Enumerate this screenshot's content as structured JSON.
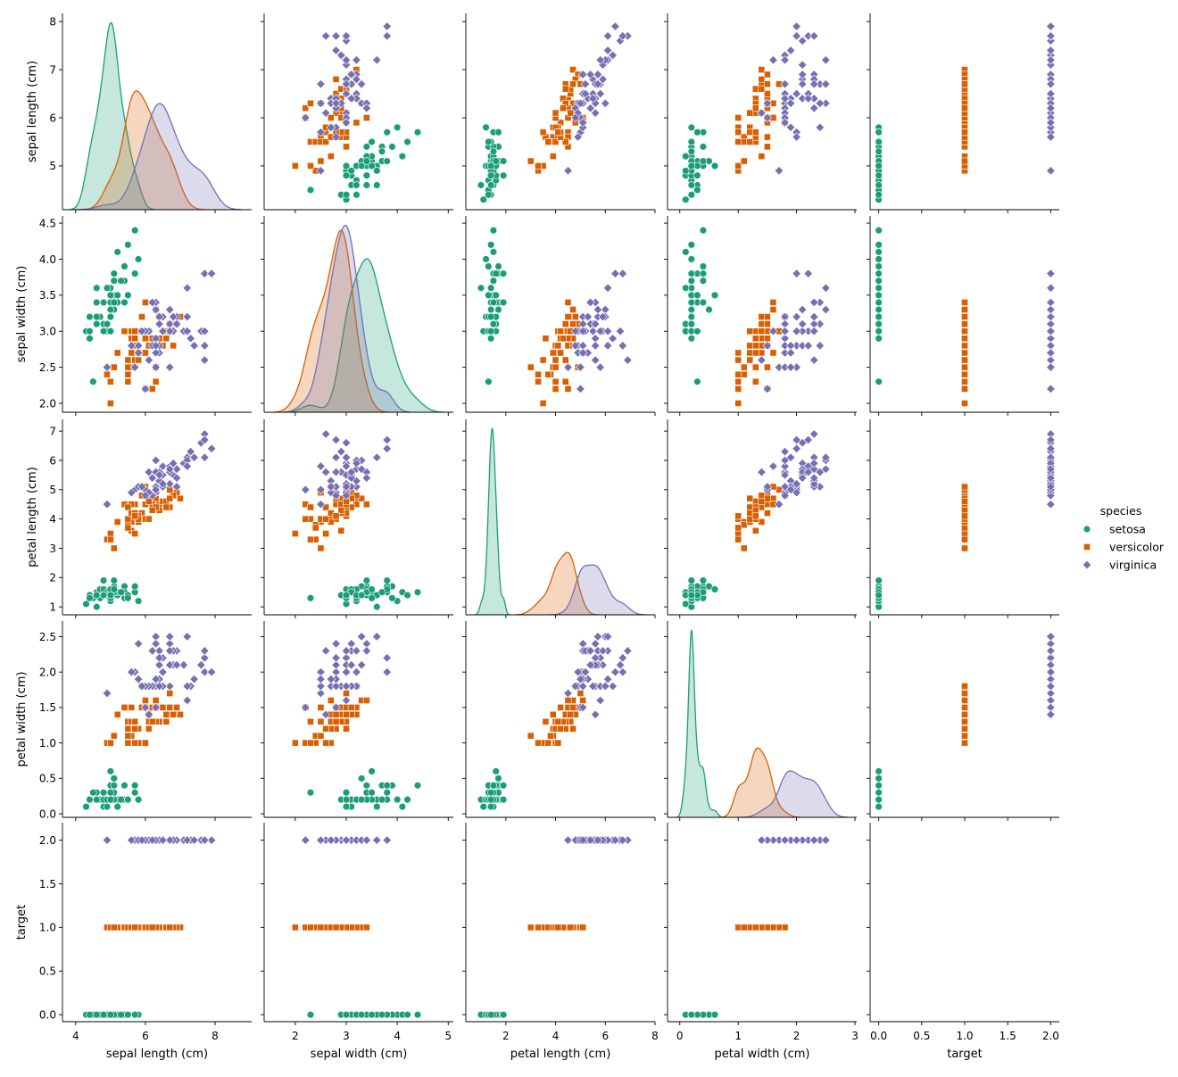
{
  "chart_data": {
    "type": "scatter",
    "subtype": "pairplot",
    "hue": "species",
    "diagonal": "kde",
    "grid": false,
    "legend": {
      "title": "species",
      "placement": "right"
    },
    "variables": [
      {
        "label": "sepal length (cm)",
        "xlim": [
          3.62,
          9.05
        ],
        "ylim": [
          4.09,
          8.17
        ],
        "xticks": [
          4,
          6,
          8
        ],
        "xtick_labels": [
          "4",
          "6",
          "8"
        ],
        "yticks": [
          5,
          6,
          7,
          8
        ],
        "ytick_labels": [
          "5",
          "6",
          "7",
          "8"
        ]
      },
      {
        "label": "sepal width (cm)",
        "xlim": [
          1.39,
          5.1
        ],
        "ylim": [
          1.876,
          4.6
        ],
        "xticks": [
          2,
          3,
          4,
          5
        ],
        "xtick_labels": [
          "2",
          "3",
          "4",
          "5"
        ],
        "yticks": [
          2.0,
          2.5,
          3.0,
          3.5,
          4.0,
          4.5
        ],
        "ytick_labels": [
          "2.0",
          "2.5",
          "3.0",
          "3.5",
          "4.0",
          "4.5"
        ]
      },
      {
        "label": "petal length (cm)",
        "xlim": [
          0.39,
          8.0
        ],
        "ylim": [
          0.73,
          7.4
        ],
        "xticks": [
          2,
          4,
          6,
          8
        ],
        "xtick_labels": [
          "2",
          "4",
          "6",
          "8"
        ],
        "yticks": [
          1,
          2,
          3,
          4,
          5,
          6,
          7
        ],
        "ytick_labels": [
          "1",
          "2",
          "3",
          "4",
          "5",
          "6",
          "7"
        ]
      },
      {
        "label": "petal width (cm)",
        "xlim": [
          -0.21,
          3.03
        ],
        "ylim": [
          -0.05,
          2.72
        ],
        "xticks": [
          0,
          1,
          2,
          3
        ],
        "xtick_labels": [
          "0",
          "1",
          "2",
          "3"
        ],
        "yticks": [
          0.0,
          0.5,
          1.0,
          1.5,
          2.0,
          2.5
        ],
        "ytick_labels": [
          "0.0",
          "0.5",
          "1.0",
          "1.5",
          "2.0",
          "2.5"
        ]
      },
      {
        "label": "target",
        "xlim": [
          -0.1,
          2.1
        ],
        "ylim": [
          -0.08,
          2.2
        ],
        "xticks": [
          0.0,
          0.5,
          1.0,
          1.5,
          2.0
        ],
        "xtick_labels": [
          "0.0",
          "0.5",
          "1.0",
          "1.5",
          "2.0"
        ],
        "yticks": [
          0.0,
          0.5,
          1.0,
          1.5,
          2.0
        ],
        "ytick_labels": [
          "0.0",
          "0.5",
          "1.0",
          "1.5",
          "2.0"
        ]
      }
    ],
    "series": [
      {
        "name": "setosa",
        "color": "#1b9e77",
        "marker": "circle",
        "target": 0,
        "rows": [
          [
            5.1,
            3.5,
            1.4,
            0.2
          ],
          [
            4.9,
            3.0,
            1.4,
            0.2
          ],
          [
            4.7,
            3.2,
            1.3,
            0.2
          ],
          [
            4.6,
            3.1,
            1.5,
            0.2
          ],
          [
            5.0,
            3.6,
            1.4,
            0.2
          ],
          [
            5.4,
            3.9,
            1.7,
            0.4
          ],
          [
            4.6,
            3.4,
            1.4,
            0.3
          ],
          [
            5.0,
            3.4,
            1.5,
            0.2
          ],
          [
            4.4,
            2.9,
            1.4,
            0.2
          ],
          [
            4.9,
            3.1,
            1.5,
            0.1
          ],
          [
            5.4,
            3.7,
            1.5,
            0.2
          ],
          [
            4.8,
            3.4,
            1.6,
            0.2
          ],
          [
            4.8,
            3.0,
            1.4,
            0.1
          ],
          [
            4.3,
            3.0,
            1.1,
            0.1
          ],
          [
            5.8,
            4.0,
            1.2,
            0.2
          ],
          [
            5.7,
            4.4,
            1.5,
            0.4
          ],
          [
            5.4,
            3.9,
            1.3,
            0.4
          ],
          [
            5.1,
            3.5,
            1.4,
            0.3
          ],
          [
            5.7,
            3.8,
            1.7,
            0.3
          ],
          [
            5.1,
            3.8,
            1.5,
            0.3
          ],
          [
            5.4,
            3.4,
            1.7,
            0.2
          ],
          [
            5.1,
            3.7,
            1.5,
            0.4
          ],
          [
            4.6,
            3.6,
            1.0,
            0.2
          ],
          [
            5.1,
            3.3,
            1.7,
            0.5
          ],
          [
            4.8,
            3.4,
            1.9,
            0.2
          ],
          [
            5.0,
            3.0,
            1.6,
            0.2
          ],
          [
            5.0,
            3.4,
            1.6,
            0.4
          ],
          [
            5.2,
            3.5,
            1.5,
            0.2
          ],
          [
            5.2,
            3.4,
            1.4,
            0.2
          ],
          [
            4.7,
            3.2,
            1.6,
            0.2
          ],
          [
            4.8,
            3.1,
            1.6,
            0.2
          ],
          [
            5.4,
            3.4,
            1.5,
            0.4
          ],
          [
            5.2,
            4.1,
            1.5,
            0.1
          ],
          [
            5.5,
            4.2,
            1.4,
            0.2
          ],
          [
            4.9,
            3.1,
            1.5,
            0.2
          ],
          [
            5.0,
            3.2,
            1.2,
            0.2
          ],
          [
            5.5,
            3.5,
            1.3,
            0.2
          ],
          [
            4.9,
            3.6,
            1.4,
            0.1
          ],
          [
            4.4,
            3.0,
            1.3,
            0.2
          ],
          [
            5.1,
            3.4,
            1.5,
            0.2
          ],
          [
            5.0,
            3.5,
            1.3,
            0.3
          ],
          [
            4.5,
            2.3,
            1.3,
            0.3
          ],
          [
            4.4,
            3.2,
            1.3,
            0.2
          ],
          [
            5.0,
            3.5,
            1.6,
            0.6
          ],
          [
            5.1,
            3.8,
            1.9,
            0.4
          ],
          [
            4.8,
            3.0,
            1.4,
            0.3
          ],
          [
            5.1,
            3.8,
            1.6,
            0.2
          ],
          [
            4.6,
            3.2,
            1.4,
            0.2
          ],
          [
            5.3,
            3.7,
            1.5,
            0.2
          ],
          [
            5.0,
            3.3,
            1.4,
            0.2
          ]
        ]
      },
      {
        "name": "versicolor",
        "color": "#d95f02",
        "marker": "square",
        "target": 1,
        "rows": [
          [
            7.0,
            3.2,
            4.7,
            1.4
          ],
          [
            6.4,
            3.2,
            4.5,
            1.5
          ],
          [
            6.9,
            3.1,
            4.9,
            1.5
          ],
          [
            5.5,
            2.3,
            4.0,
            1.3
          ],
          [
            6.5,
            2.8,
            4.6,
            1.5
          ],
          [
            5.7,
            2.8,
            4.5,
            1.3
          ],
          [
            6.3,
            3.3,
            4.7,
            1.6
          ],
          [
            4.9,
            2.4,
            3.3,
            1.0
          ],
          [
            6.6,
            2.9,
            4.6,
            1.3
          ],
          [
            5.2,
            2.7,
            3.9,
            1.4
          ],
          [
            5.0,
            2.0,
            3.5,
            1.0
          ],
          [
            5.9,
            3.0,
            4.2,
            1.5
          ],
          [
            6.0,
            2.2,
            4.0,
            1.0
          ],
          [
            6.1,
            2.9,
            4.7,
            1.4
          ],
          [
            5.6,
            2.9,
            3.6,
            1.3
          ],
          [
            6.7,
            3.1,
            4.4,
            1.4
          ],
          [
            5.6,
            3.0,
            4.5,
            1.5
          ],
          [
            5.8,
            2.7,
            4.1,
            1.0
          ],
          [
            6.2,
            2.2,
            4.5,
            1.5
          ],
          [
            5.6,
            2.5,
            3.9,
            1.1
          ],
          [
            5.9,
            3.2,
            4.8,
            1.8
          ],
          [
            6.1,
            2.8,
            4.0,
            1.3
          ],
          [
            6.3,
            2.5,
            4.9,
            1.5
          ],
          [
            6.1,
            2.8,
            4.7,
            1.2
          ],
          [
            6.4,
            2.9,
            4.3,
            1.3
          ],
          [
            6.6,
            3.0,
            4.4,
            1.4
          ],
          [
            6.8,
            2.8,
            4.8,
            1.4
          ],
          [
            6.7,
            3.0,
            5.0,
            1.7
          ],
          [
            6.0,
            2.9,
            4.5,
            1.5
          ],
          [
            5.7,
            2.6,
            3.5,
            1.0
          ],
          [
            5.5,
            2.4,
            3.8,
            1.1
          ],
          [
            5.5,
            2.4,
            3.7,
            1.0
          ],
          [
            5.8,
            2.7,
            3.9,
            1.2
          ],
          [
            6.0,
            2.7,
            5.1,
            1.6
          ],
          [
            5.4,
            3.0,
            4.5,
            1.5
          ],
          [
            6.0,
            3.4,
            4.5,
            1.6
          ],
          [
            6.7,
            3.1,
            4.7,
            1.5
          ],
          [
            6.3,
            2.3,
            4.4,
            1.3
          ],
          [
            5.6,
            3.0,
            4.1,
            1.3
          ],
          [
            5.5,
            2.5,
            4.0,
            1.3
          ],
          [
            5.5,
            2.6,
            4.4,
            1.2
          ],
          [
            6.1,
            3.0,
            4.6,
            1.4
          ],
          [
            5.8,
            2.6,
            4.0,
            1.2
          ],
          [
            5.0,
            2.3,
            3.3,
            1.0
          ],
          [
            5.6,
            2.7,
            4.2,
            1.3
          ],
          [
            5.7,
            3.0,
            4.2,
            1.2
          ],
          [
            5.7,
            2.9,
            4.2,
            1.3
          ],
          [
            6.2,
            2.9,
            4.3,
            1.3
          ],
          [
            5.1,
            2.5,
            3.0,
            1.1
          ],
          [
            5.7,
            2.8,
            4.1,
            1.3
          ]
        ]
      },
      {
        "name": "virginica",
        "color": "#7570b3",
        "marker": "diamond",
        "target": 2,
        "rows": [
          [
            6.3,
            3.3,
            6.0,
            2.5
          ],
          [
            5.8,
            2.7,
            5.1,
            1.9
          ],
          [
            7.1,
            3.0,
            5.9,
            2.1
          ],
          [
            6.3,
            2.9,
            5.6,
            1.8
          ],
          [
            6.5,
            3.0,
            5.8,
            2.2
          ],
          [
            7.6,
            3.0,
            6.6,
            2.1
          ],
          [
            4.9,
            2.5,
            4.5,
            1.7
          ],
          [
            7.3,
            2.9,
            6.3,
            1.8
          ],
          [
            6.7,
            2.5,
            5.8,
            1.8
          ],
          [
            7.2,
            3.6,
            6.1,
            2.5
          ],
          [
            6.5,
            3.2,
            5.1,
            2.0
          ],
          [
            6.4,
            2.7,
            5.3,
            1.9
          ],
          [
            6.8,
            3.0,
            5.5,
            2.1
          ],
          [
            5.7,
            2.5,
            5.0,
            2.0
          ],
          [
            5.8,
            2.8,
            5.1,
            2.4
          ],
          [
            6.4,
            3.2,
            5.3,
            2.3
          ],
          [
            6.5,
            3.0,
            5.5,
            1.8
          ],
          [
            7.7,
            3.8,
            6.7,
            2.2
          ],
          [
            7.7,
            2.6,
            6.9,
            2.3
          ],
          [
            6.0,
            2.2,
            5.0,
            1.5
          ],
          [
            6.9,
            3.2,
            5.7,
            2.3
          ],
          [
            5.6,
            2.8,
            4.9,
            2.0
          ],
          [
            7.7,
            2.8,
            6.7,
            2.0
          ],
          [
            6.3,
            2.7,
            4.9,
            1.8
          ],
          [
            6.7,
            3.3,
            5.7,
            2.1
          ],
          [
            7.2,
            3.2,
            6.0,
            1.8
          ],
          [
            6.2,
            2.8,
            4.8,
            1.8
          ],
          [
            6.1,
            3.0,
            4.9,
            1.8
          ],
          [
            6.4,
            2.8,
            5.6,
            2.1
          ],
          [
            7.2,
            3.0,
            5.8,
            1.6
          ],
          [
            7.4,
            2.8,
            6.1,
            1.9
          ],
          [
            7.9,
            3.8,
            6.4,
            2.0
          ],
          [
            6.4,
            2.8,
            5.6,
            2.2
          ],
          [
            6.3,
            2.8,
            5.1,
            1.5
          ],
          [
            6.1,
            2.6,
            5.6,
            1.4
          ],
          [
            7.7,
            3.0,
            6.1,
            2.3
          ],
          [
            6.3,
            3.4,
            5.6,
            2.4
          ],
          [
            6.4,
            3.1,
            5.5,
            1.8
          ],
          [
            6.0,
            3.0,
            4.8,
            1.8
          ],
          [
            6.9,
            3.1,
            5.4,
            2.1
          ],
          [
            6.7,
            3.1,
            5.6,
            2.4
          ],
          [
            6.9,
            3.1,
            5.1,
            2.3
          ],
          [
            5.8,
            2.7,
            5.1,
            1.9
          ],
          [
            6.8,
            3.2,
            5.9,
            2.3
          ],
          [
            6.7,
            3.3,
            5.7,
            2.5
          ],
          [
            6.7,
            3.0,
            5.2,
            2.3
          ],
          [
            6.3,
            2.5,
            5.0,
            1.9
          ],
          [
            6.5,
            3.0,
            5.2,
            2.0
          ],
          [
            6.2,
            3.4,
            5.4,
            2.3
          ],
          [
            5.9,
            3.0,
            5.1,
            1.8
          ]
        ]
      }
    ]
  }
}
